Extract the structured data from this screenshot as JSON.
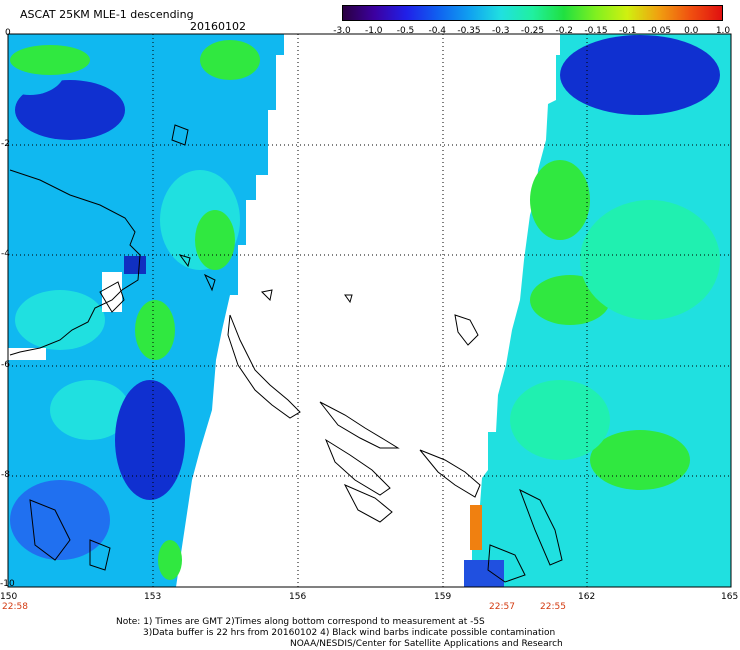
{
  "header": {
    "title": "ASCAT 25KM MLE-1 descending",
    "date": "20160102"
  },
  "colorbar": {
    "labels": [
      "-3.0",
      "-1.0",
      "-0.5",
      "-0.4",
      "-0.35",
      "-0.3",
      "-0.25",
      "-0.2",
      "-0.15",
      "-0.1",
      "-0.05",
      "0.0",
      "1.0"
    ],
    "colors": [
      "#2a0040",
      "#3c00a0",
      "#2020e8",
      "#1060f0",
      "#10a0f0",
      "#20e0e0",
      "#20f0a0",
      "#20e040",
      "#80f020",
      "#d0f010",
      "#f0a010",
      "#f05010",
      "#e01010"
    ]
  },
  "map": {
    "lon_labels": [
      "150",
      "153",
      "156",
      "159",
      "162",
      "165"
    ],
    "lat_labels": [
      "0",
      "-2",
      "-4",
      "-6",
      "-8",
      "-10"
    ],
    "time_labels": [
      "22:58",
      "22:57",
      "22:55"
    ],
    "swath_colors": {
      "dark": "#1030d0",
      "blue": "#2070f0",
      "light": "#10b8f0",
      "cyan": "#20e0e0",
      "teal": "#20f0b0",
      "green": "#30e840"
    },
    "coast_color": "#000000"
  },
  "notes": {
    "line1": "Note: 1) Times are GMT 2)Times along bottom correspond to measurement at -5S",
    "line2": "3)Data buffer is 22 hrs from 20160102 4) Black wind barbs indicate possible contamination",
    "line3": "NOAA/NESDIS/Center for Satellite Applications and Research"
  }
}
